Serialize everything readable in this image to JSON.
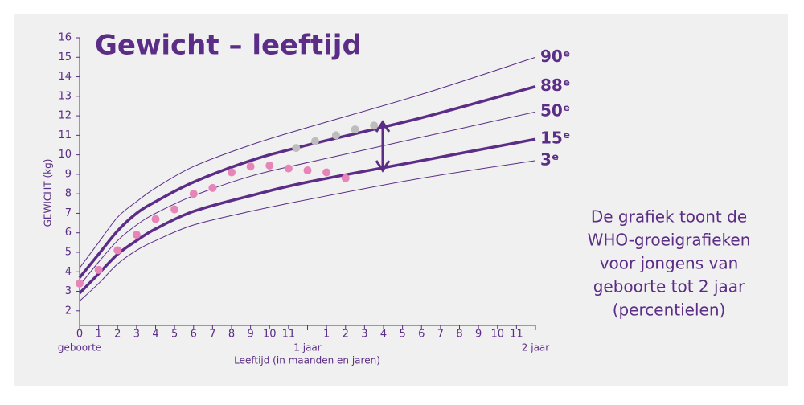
{
  "chart_data": {
    "type": "line",
    "title": "Gewicht – leeftijd",
    "y_label": "GEWICHT (kg)",
    "x_label": "Leeftijd (in maanden en jaren)",
    "xlim": [
      0,
      24
    ],
    "ylim": [
      1.25,
      16
    ],
    "yticks": [
      2,
      3,
      4,
      5,
      6,
      7,
      8,
      9,
      10,
      11,
      12,
      13,
      14,
      15,
      16
    ],
    "xticks": [
      0,
      1,
      2,
      3,
      4,
      5,
      6,
      7,
      8,
      9,
      10,
      11,
      {
        "value": 13,
        "label": "1"
      },
      {
        "value": 14,
        "label": "2"
      },
      {
        "value": 15,
        "label": "3"
      },
      {
        "value": 16,
        "label": "4"
      },
      {
        "value": 17,
        "label": "5"
      },
      {
        "value": 18,
        "label": "6"
      },
      {
        "value": 19,
        "label": "7"
      },
      {
        "value": 20,
        "label": "8"
      },
      {
        "value": 21,
        "label": "9"
      },
      {
        "value": 22,
        "label": "10"
      },
      {
        "value": 23,
        "label": "11"
      }
    ],
    "xticks_secondary": [
      {
        "value": 0,
        "label": "geboorte"
      },
      {
        "value": 12,
        "label": "1 jaar"
      },
      {
        "value": 24,
        "label": "2 jaar"
      }
    ],
    "series": [
      {
        "name": "90ᵉ",
        "color": "#5b2d86",
        "style": "thin",
        "x": [
          0,
          1,
          2,
          3,
          4,
          6,
          9,
          12,
          18,
          24
        ],
        "values": [
          4.2,
          5.5,
          6.8,
          7.6,
          8.3,
          9.4,
          10.5,
          11.4,
          13.1,
          15.0
        ]
      },
      {
        "name": "88ᵉ",
        "color": "#5b2d86",
        "style": "thick",
        "x": [
          0,
          1,
          2,
          3,
          4,
          6,
          9,
          12,
          18,
          24
        ],
        "values": [
          3.7,
          4.9,
          6.1,
          7.0,
          7.6,
          8.6,
          9.7,
          10.5,
          11.9,
          13.5
        ]
      },
      {
        "name": "50ᵉ",
        "color": "#5b2d86",
        "style": "thin",
        "x": [
          0,
          1,
          2,
          3,
          4,
          6,
          9,
          12,
          18,
          24
        ],
        "values": [
          3.3,
          4.5,
          5.6,
          6.4,
          7.0,
          7.9,
          8.9,
          9.6,
          10.9,
          12.2
        ]
      },
      {
        "name": "15ᵉ",
        "color": "#5b2d86",
        "style": "thick",
        "x": [
          0,
          1,
          2,
          3,
          4,
          6,
          9,
          12,
          18,
          24
        ],
        "values": [
          2.9,
          3.9,
          4.9,
          5.6,
          6.2,
          7.1,
          7.9,
          8.6,
          9.7,
          10.8
        ]
      },
      {
        "name": "3ᵉ",
        "color": "#5b2d86",
        "style": "thin",
        "x": [
          0,
          1,
          2,
          3,
          4,
          6,
          9,
          12,
          18,
          24
        ],
        "values": [
          2.5,
          3.4,
          4.4,
          5.1,
          5.6,
          6.4,
          7.1,
          7.7,
          8.8,
          9.7
        ]
      }
    ],
    "points": [
      {
        "color": "#e885b8",
        "x": [
          0,
          1,
          2,
          3,
          4,
          5,
          6,
          7,
          8,
          9,
          10,
          11,
          12,
          13,
          14
        ],
        "values": [
          3.4,
          4.1,
          5.1,
          5.9,
          6.7,
          7.2,
          8.0,
          8.3,
          9.1,
          9.4,
          9.45,
          9.3,
          9.2,
          9.1,
          8.8
        ]
      },
      {
        "color": "#bdbdbd",
        "x": [
          11.4,
          12.4,
          13.5,
          14.5,
          15.5
        ],
        "values": [
          10.35,
          10.7,
          11.0,
          11.3,
          11.5
        ]
      }
    ],
    "note": [
      "De grafiek toont de",
      "WHO-groeigrafieken",
      "voor jongens van",
      "geboorte tot 2 jaar",
      "(percentielen)"
    ]
  }
}
